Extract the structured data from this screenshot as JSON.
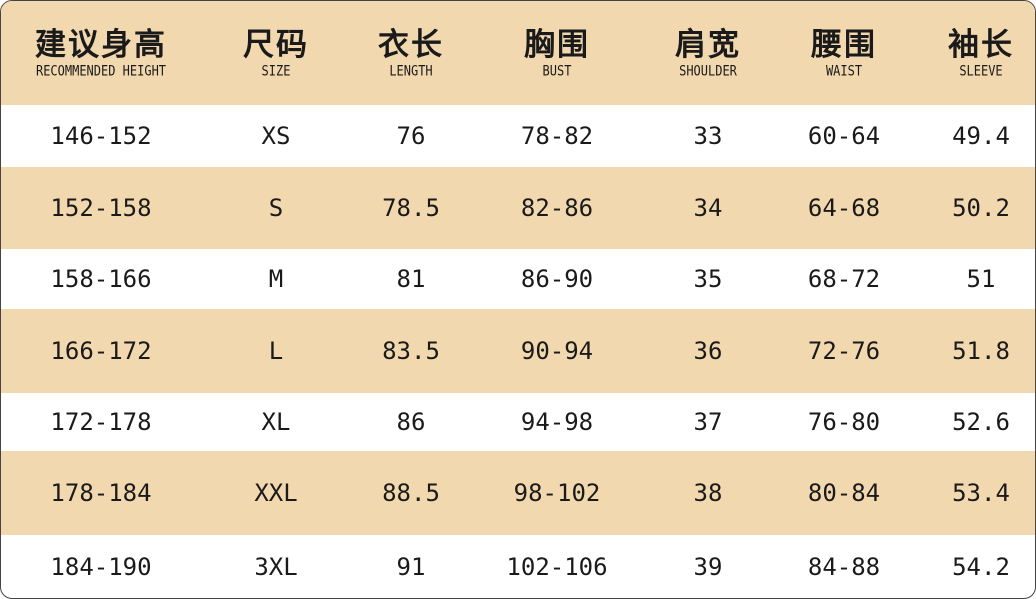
{
  "table": {
    "columns": [
      {
        "zh": "建议身高",
        "en": "RECOMMENDED HEIGHT"
      },
      {
        "zh": "尺码",
        "en": "SIZE"
      },
      {
        "zh": "衣长",
        "en": "LENGTH"
      },
      {
        "zh": "胸围",
        "en": "BUST"
      },
      {
        "zh": "肩宽",
        "en": "SHOULDER"
      },
      {
        "zh": "腰围",
        "en": "WAIST"
      },
      {
        "zh": "袖长",
        "en": "SLEEVE"
      }
    ],
    "rows": [
      [
        "146-152",
        "XS",
        "76",
        "78-82",
        "33",
        "60-64",
        "49.4"
      ],
      [
        "152-158",
        "S",
        "78.5",
        "82-86",
        "34",
        "64-68",
        "50.2"
      ],
      [
        "158-166",
        "M",
        "81",
        "86-90",
        "35",
        "68-72",
        "51"
      ],
      [
        "166-172",
        "L",
        "83.5",
        "90-94",
        "36",
        "72-76",
        "51.8"
      ],
      [
        "172-178",
        "XL",
        "86",
        "94-98",
        "37",
        "76-80",
        "52.6"
      ],
      [
        "178-184",
        "XXL",
        "88.5",
        "98-102",
        "38",
        "80-84",
        "53.4"
      ],
      [
        "184-190",
        "3XL",
        "91",
        "102-106",
        "39",
        "84-88",
        "54.2"
      ]
    ]
  },
  "colors": {
    "header_band": "#f2d8ae",
    "alt_band": "#f2d8ae",
    "row_band": "#ffffff",
    "text": "#1a1a1a"
  }
}
